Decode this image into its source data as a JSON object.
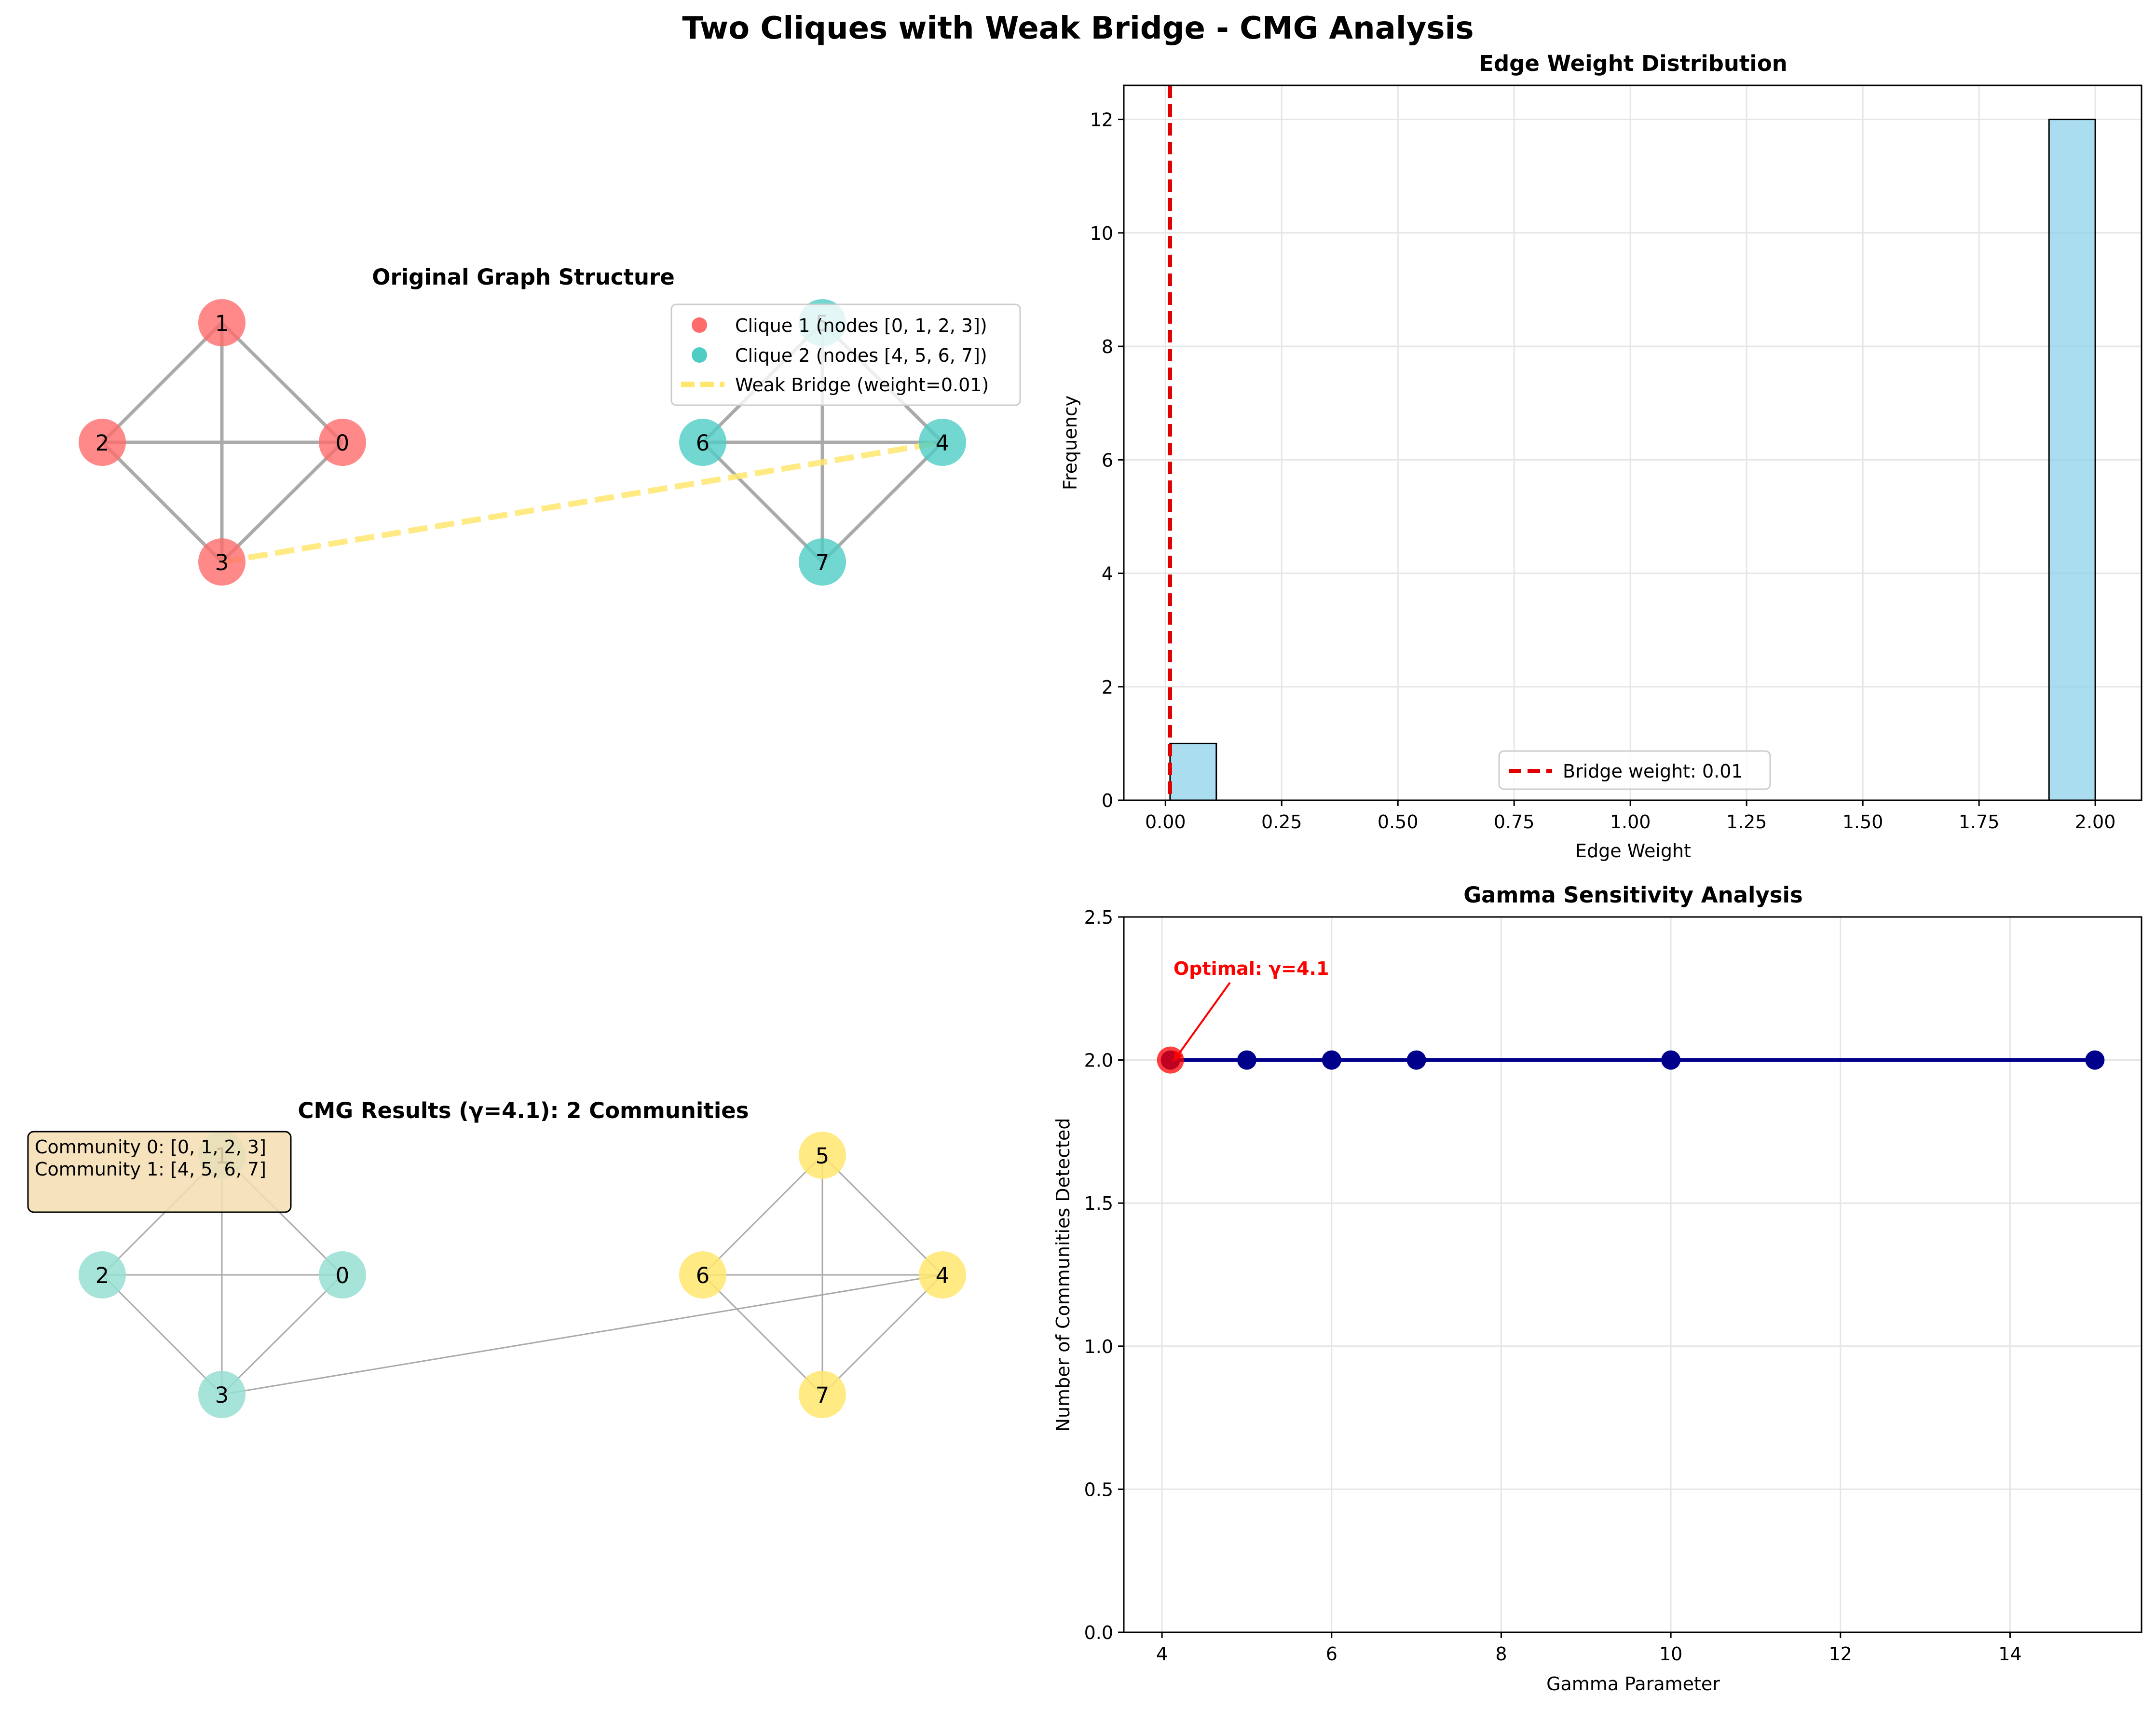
{
  "suptitle": "Two Cliques with Weak Bridge - CMG Analysis",
  "colors": {
    "clique1": "#ff6b6b",
    "clique2": "#4ecdc4",
    "bridge": "#ffe66d",
    "community0": "#96ded1",
    "community1": "#ffe66d",
    "hist_bar": "#87ceeb",
    "bridge_line": "#e00000",
    "gamma_line": "#00008b",
    "optimal": "#ff0000",
    "annotation_box": "#f5deb3",
    "edge": "#aaaaaa"
  },
  "graph1": {
    "title": "Original Graph Structure",
    "nodes": [
      "0",
      "1",
      "2",
      "3",
      "4",
      "5",
      "6",
      "7"
    ],
    "clique1_nodes": [
      "0",
      "1",
      "2",
      "3"
    ],
    "clique2_nodes": [
      "4",
      "5",
      "6",
      "7"
    ],
    "edges": [
      [
        "0",
        "1"
      ],
      [
        "0",
        "2"
      ],
      [
        "0",
        "3"
      ],
      [
        "1",
        "2"
      ],
      [
        "1",
        "3"
      ],
      [
        "2",
        "3"
      ],
      [
        "4",
        "5"
      ],
      [
        "4",
        "6"
      ],
      [
        "4",
        "7"
      ],
      [
        "5",
        "6"
      ],
      [
        "5",
        "7"
      ],
      [
        "6",
        "7"
      ]
    ],
    "bridge_edge": [
      "3",
      "4"
    ],
    "legend": [
      {
        "label": "Clique 1 (nodes [0, 1, 2, 3])",
        "marker": "dot",
        "color_key": "clique1"
      },
      {
        "label": "Clique 2 (nodes [4, 5, 6, 7])",
        "marker": "dot",
        "color_key": "clique2"
      },
      {
        "label": "Weak Bridge (weight=0.01)",
        "marker": "dashed-line",
        "color_key": "bridge"
      }
    ],
    "legend_placement": "upper-right"
  },
  "graph2": {
    "title": "CMG Results (γ=4.1): 2 Communities",
    "communities_box": [
      "Community 0: [0, 1, 2, 3]",
      "Community 1: [4, 5, 6, 7]"
    ],
    "community0_nodes": [
      "0",
      "1",
      "2",
      "3"
    ],
    "community1_nodes": [
      "4",
      "5",
      "6",
      "7"
    ],
    "communities_box_placement": "upper-left"
  },
  "chart_data": [
    {
      "type": "bar",
      "title": "Edge Weight Distribution",
      "xlabel": "Edge Weight",
      "ylabel": "Frequency",
      "bins": [
        {
          "x0": 0.01,
          "x1": 0.1095,
          "count": 1
        },
        {
          "x0": 1.9005,
          "x1": 2.0,
          "count": 12
        }
      ],
      "reference_line": {
        "x": 0.01,
        "label": "Bridge weight: 0.01",
        "style": "dashed"
      },
      "xlim": [
        -0.0895,
        2.0995
      ],
      "ylim": [
        0,
        12.6
      ],
      "xticks": [
        "0.00",
        "0.25",
        "0.50",
        "0.75",
        "1.00",
        "1.25",
        "1.50",
        "1.75",
        "2.00"
      ],
      "xtick_values": [
        0,
        0.25,
        0.5,
        0.75,
        1.0,
        1.25,
        1.5,
        1.75,
        2.0
      ],
      "yticks": [
        "0",
        "2",
        "4",
        "6",
        "8",
        "10",
        "12"
      ],
      "ytick_values": [
        0,
        2,
        4,
        6,
        8,
        10,
        12
      ],
      "grid": true,
      "legend_placement": "lower-center"
    },
    {
      "type": "line",
      "title": "Gamma Sensitivity Analysis",
      "xlabel": "Gamma Parameter",
      "ylabel": "Number of Communities Detected",
      "series": [
        {
          "x": [
            4.1,
            5,
            6,
            7,
            10,
            15
          ],
          "y": [
            2,
            2,
            2,
            2,
            2,
            2
          ]
        }
      ],
      "highlight": {
        "x": 4.1,
        "y": 2
      },
      "annotation": "Optimal: γ=4.1",
      "xlim": [
        3.55,
        15.55
      ],
      "ylim": [
        0,
        2.5
      ],
      "xticks": [
        "4",
        "6",
        "8",
        "10",
        "12",
        "14"
      ],
      "xtick_values": [
        4,
        6,
        8,
        10,
        12,
        14
      ],
      "yticks": [
        "0.0",
        "0.5",
        "1.0",
        "1.5",
        "2.0",
        "2.5"
      ],
      "ytick_values": [
        0,
        0.5,
        1.0,
        1.5,
        2.0,
        2.5
      ],
      "grid": true
    }
  ]
}
